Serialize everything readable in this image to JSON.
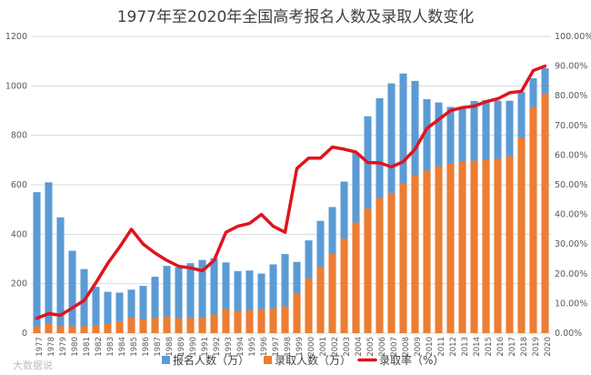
{
  "chart_data": {
    "type": "bar",
    "title": "1977年至2020年全国高考报名人数及录取人数变化",
    "categories": [
      "1977",
      "1978",
      "1979",
      "1980",
      "1981",
      "1982",
      "1983",
      "1984",
      "1985",
      "1986",
      "1987",
      "1988",
      "1989",
      "1990",
      "1991",
      "1992",
      "1993",
      "1994",
      "1995",
      "1996",
      "1997",
      "1998",
      "1999",
      "2000",
      "2001",
      "2002",
      "2003",
      "2004",
      "2005",
      "2006",
      "2007",
      "2008",
      "2009",
      "2010",
      "2011",
      "2012",
      "2013",
      "2014",
      "2015",
      "2016",
      "2017",
      "2018",
      "2019",
      "2020"
    ],
    "ylim": [
      0,
      1200
    ],
    "yticks": [
      "0",
      "200",
      "400",
      "600",
      "800",
      "1000",
      "1200"
    ],
    "y2lim": [
      0,
      1
    ],
    "y2ticks": [
      "0.00%",
      "10.00%",
      "20.00%",
      "30.00%",
      "40.00%",
      "50.00%",
      "60.00%",
      "70.00%",
      "80.00%",
      "90.00%",
      "100.00%"
    ],
    "series": [
      {
        "name": "报名人数（万）",
        "type": "bar",
        "color": "#5b9bd5",
        "values": [
          570,
          610,
          468,
          333,
          259,
          187,
          167,
          164,
          176,
          191,
          228,
          272,
          266,
          283,
          296,
          303,
          286,
          251,
          253,
          241,
          278,
          320,
          288,
          375,
          454,
          510,
          613,
          729,
          877,
          950,
          1010,
          1050,
          1020,
          946,
          933,
          915,
          912,
          939,
          942,
          940,
          940,
          975,
          1031,
          1071
        ]
      },
      {
        "name": "录取人数（万）",
        "type": "bar",
        "color": "#ed7d31",
        "values": [
          27,
          40,
          28,
          28,
          28,
          32,
          39,
          48,
          62,
          57,
          62,
          67,
          60,
          61,
          62,
          75,
          98,
          90,
          93,
          97,
          100,
          108,
          160,
          221,
          268,
          320,
          382,
          447,
          504,
          546,
          566,
          607,
          639,
          657,
          675,
          685,
          694,
          698,
          700,
          705,
          715,
          791,
          914,
          967
        ]
      },
      {
        "name": "录取率（%）",
        "type": "line",
        "axis": "right",
        "color": "#e0141e",
        "values": [
          0.05,
          0.066,
          0.06,
          0.085,
          0.11,
          0.17,
          0.235,
          0.29,
          0.35,
          0.3,
          0.27,
          0.245,
          0.225,
          0.22,
          0.21,
          0.245,
          0.34,
          0.36,
          0.37,
          0.4,
          0.36,
          0.34,
          0.555,
          0.59,
          0.59,
          0.627,
          0.62,
          0.61,
          0.575,
          0.574,
          0.56,
          0.578,
          0.62,
          0.69,
          0.72,
          0.75,
          0.76,
          0.765,
          0.78,
          0.79,
          0.81,
          0.815,
          0.885,
          0.9
        ]
      }
    ],
    "legend_position": "bottom"
  },
  "watermark": "大数据说"
}
